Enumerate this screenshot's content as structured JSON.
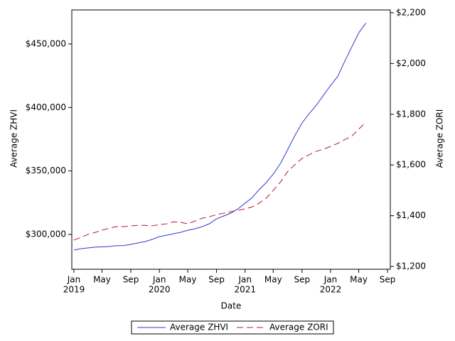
{
  "chart_data": {
    "type": "line",
    "x_label": "Date",
    "y_label": "Average ZHVI",
    "y2_label": "Average ZORI",
    "x": [
      "2019-01",
      "2019-02",
      "2019-03",
      "2019-04",
      "2019-05",
      "2019-06",
      "2019-07",
      "2019-08",
      "2019-09",
      "2019-10",
      "2019-11",
      "2019-12",
      "2020-01",
      "2020-02",
      "2020-03",
      "2020-04",
      "2020-05",
      "2020-06",
      "2020-07",
      "2020-08",
      "2020-09",
      "2020-10",
      "2020-11",
      "2020-12",
      "2021-01",
      "2021-02",
      "2021-03",
      "2021-04",
      "2021-05",
      "2021-06",
      "2021-07",
      "2021-08",
      "2021-09",
      "2021-10",
      "2021-11",
      "2021-12",
      "2022-01",
      "2022-02",
      "2022-03",
      "2022-04",
      "2022-05",
      "2022-06"
    ],
    "series": [
      {
        "name": "Average ZHVI",
        "color": "#3535d4",
        "style": "solid",
        "values": [
          287700,
          288800,
          289400,
          290000,
          290200,
          290500,
          291100,
          291300,
          292200,
          293300,
          294400,
          296100,
          298300,
          299400,
          300600,
          301700,
          303300,
          304500,
          306100,
          308400,
          312300,
          314500,
          316800,
          320100,
          324600,
          329100,
          335200,
          340800,
          347500,
          355900,
          366500,
          377700,
          387700,
          395000,
          401700,
          409500,
          417300,
          424600,
          435800,
          447500,
          458700,
          466500
        ]
      },
      {
        "name": "Average ZORI",
        "color": "#b2182b",
        "style": "dashed",
        "axis": "y2",
        "values": [
          1304,
          1315,
          1326,
          1334,
          1343,
          1351,
          1357,
          1357,
          1360,
          1362,
          1362,
          1360,
          1365,
          1368,
          1376,
          1374,
          1368,
          1379,
          1390,
          1396,
          1404,
          1410,
          1416,
          1421,
          1427,
          1435,
          1449,
          1469,
          1500,
          1533,
          1573,
          1601,
          1626,
          1640,
          1654,
          1662,
          1673,
          1685,
          1699,
          1713,
          1741,
          1769
        ]
      }
    ],
    "xlim": [
      "2018-12-23",
      "2022-09-13"
    ],
    "xticks": [
      {
        "value": "2019-01",
        "label": [
          "Jan",
          "2019"
        ]
      },
      {
        "value": "2019-05",
        "label": [
          "May"
        ]
      },
      {
        "value": "2019-09",
        "label": [
          "Sep"
        ]
      },
      {
        "value": "2020-01",
        "label": [
          "Jan",
          "2020"
        ]
      },
      {
        "value": "2020-05",
        "label": [
          "May"
        ]
      },
      {
        "value": "2020-09",
        "label": [
          "Sep"
        ]
      },
      {
        "value": "2021-01",
        "label": [
          "Jan",
          "2021"
        ]
      },
      {
        "value": "2021-05",
        "label": [
          "May"
        ]
      },
      {
        "value": "2021-09",
        "label": [
          "Sep"
        ]
      },
      {
        "value": "2022-01",
        "label": [
          "Jan",
          "2022"
        ]
      },
      {
        "value": "2022-05",
        "label": [
          "May"
        ]
      },
      {
        "value": "2022-09",
        "label": [
          "Sep"
        ]
      }
    ],
    "ylim": [
      272600,
      476800
    ],
    "yticks": [
      {
        "value": 300000,
        "label": "$300,000"
      },
      {
        "value": 350000,
        "label": "$350,000"
      },
      {
        "value": 400000,
        "label": "$400,000"
      },
      {
        "value": 450000,
        "label": "$450,000"
      }
    ],
    "y2lim": [
      1189,
      2211
    ],
    "y2ticks": [
      {
        "value": 1200,
        "label": "$1,200"
      },
      {
        "value": 1400,
        "label": "$1,400"
      },
      {
        "value": 1600,
        "label": "$1,600"
      },
      {
        "value": 1800,
        "label": "$1,800"
      },
      {
        "value": 2000,
        "label": "$2,000"
      },
      {
        "value": 2200,
        "label": "$2,200"
      }
    ],
    "legend": "bottom"
  }
}
